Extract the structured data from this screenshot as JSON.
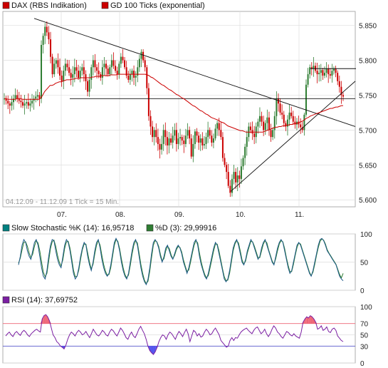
{
  "chart_data": [
    {
      "type": "candlestick",
      "legend": [
        {
          "label": "DAX (RBS Indikation)",
          "color": "#cc0000"
        },
        {
          "label": "GD 100 Ticks (exponential)",
          "color": "#cc0000"
        }
      ],
      "footer": "04.12.09 - 11.12.09   1 Tick = 15 Min.",
      "x_labels": [
        "07.",
        "08.",
        "09.",
        "10.",
        "11."
      ],
      "y_ticks": [
        "5.850",
        "5.800",
        "5.750",
        "5.700",
        "5.650",
        "5.600"
      ],
      "ylim": [
        5590,
        5870
      ],
      "grid": true,
      "candle_up_color": "#2e7d32",
      "candle_down_color": "#cc0000",
      "ma_color": "#cc0000",
      "close_series": [
        5745,
        5742,
        5738,
        5735,
        5740,
        5745,
        5750,
        5745,
        5742,
        5740,
        5735,
        5738,
        5740,
        5735,
        5738,
        5742,
        5745,
        5748,
        5750,
        5745,
        5822,
        5835,
        5848,
        5840,
        5830,
        5805,
        5780,
        5795,
        5800,
        5790,
        5778,
        5770,
        5785,
        5795,
        5790,
        5782,
        5775,
        5780,
        5790,
        5785,
        5775,
        5785,
        5790,
        5780,
        5770,
        5755,
        5772,
        5790,
        5800,
        5790,
        5785,
        5780,
        5775,
        5790,
        5795,
        5788,
        5780,
        5790,
        5800,
        5792,
        5785,
        5780,
        5795,
        5805,
        5800,
        5790,
        5778,
        5772,
        5780,
        5785,
        5775,
        5778,
        5790,
        5802,
        5812,
        5800,
        5790,
        5760,
        5720,
        5705,
        5690,
        5700,
        5690,
        5680,
        5672,
        5680,
        5700,
        5690,
        5678,
        5688,
        5682,
        5692,
        5700,
        5680,
        5688,
        5690,
        5685,
        5680,
        5692,
        5700,
        5688,
        5662,
        5680,
        5698,
        5692,
        5682,
        5688,
        5678,
        5680,
        5690,
        5700,
        5692,
        5682,
        5688,
        5702,
        5710,
        5700,
        5690,
        5660,
        5650,
        5640,
        5620,
        5610,
        5630,
        5640,
        5625,
        5635,
        5630,
        5648,
        5660,
        5676,
        5690,
        5705,
        5700,
        5695,
        5690,
        5705,
        5712,
        5720,
        5712,
        5700,
        5710,
        5718,
        5700,
        5690,
        5700,
        5720,
        5745,
        5738,
        5725,
        5722,
        5710,
        5705,
        5715,
        5725,
        5720,
        5712,
        5708,
        5712,
        5708,
        5704,
        5700,
        5722,
        5765,
        5780,
        5790,
        5788,
        5792,
        5785,
        5780,
        5782,
        5786,
        5778,
        5782,
        5788,
        5780,
        5778,
        5785,
        5788,
        5782,
        5770,
        5762,
        5750,
        5748
      ],
      "ema_series": [
        5745,
        5745,
        5744,
        5744,
        5744,
        5744,
        5744,
        5745,
        5745,
        5745,
        5744,
        5744,
        5744,
        5744,
        5744,
        5744,
        5744,
        5744,
        5744,
        5744,
        5746,
        5750,
        5755,
        5758,
        5761,
        5764,
        5764,
        5765,
        5767,
        5768,
        5769,
        5769,
        5770,
        5771,
        5772,
        5772,
        5772,
        5773,
        5773,
        5774,
        5774,
        5774,
        5775,
        5775,
        5775,
        5775,
        5775,
        5775,
        5776,
        5776,
        5777,
        5777,
        5777,
        5778,
        5778,
        5778,
        5778,
        5778,
        5779,
        5779,
        5779,
        5779,
        5780,
        5780,
        5780,
        5780,
        5780,
        5780,
        5780,
        5780,
        5780,
        5780,
        5780,
        5780,
        5780,
        5780,
        5780,
        5780,
        5779,
        5778,
        5776,
        5775,
        5773,
        5771,
        5769,
        5767,
        5765,
        5764,
        5762,
        5760,
        5758,
        5757,
        5755,
        5753,
        5751,
        5750,
        5748,
        5746,
        5745,
        5743,
        5741,
        5739,
        5737,
        5735,
        5734,
        5732,
        5730,
        5728,
        5727,
        5725,
        5723,
        5722,
        5720,
        5718,
        5717,
        5716,
        5715,
        5714,
        5712,
        5711,
        5710,
        5708,
        5706,
        5705,
        5704,
        5703,
        5702,
        5701,
        5700,
        5699,
        5699,
        5698,
        5697,
        5697,
        5697,
        5697,
        5697,
        5697,
        5697,
        5697,
        5697,
        5697,
        5698,
        5699,
        5700,
        5701,
        5702,
        5703,
        5704,
        5704,
        5705,
        5705,
        5706,
        5706,
        5707,
        5707,
        5708,
        5708,
        5709,
        5709,
        5710,
        5711,
        5712,
        5713,
        5715,
        5717,
        5718,
        5720,
        5721,
        5722,
        5723,
        5724,
        5725,
        5726,
        5727,
        5728,
        5729,
        5730,
        5731,
        5731,
        5732,
        5733,
        5733,
        5734,
        5735,
        5735
      ]
    },
    {
      "type": "line",
      "legend": [
        {
          "label": "Slow Stochastic %K (14): 16,95718",
          "color": "#008080"
        },
        {
          "label": "%D (3): 29,99916",
          "color": "#2e7d32"
        }
      ],
      "y_ticks": [
        "100",
        "50",
        "0"
      ],
      "ylim": [
        0,
        100
      ],
      "line_color": "#1f6b5a",
      "k_series": [
        45,
        60,
        80,
        90,
        85,
        70,
        60,
        55,
        70,
        85,
        90,
        80,
        60,
        40,
        25,
        20,
        35,
        60,
        80,
        90,
        88,
        70,
        55,
        45,
        40,
        60,
        80,
        90,
        85,
        70,
        50,
        30,
        20,
        25,
        40,
        60,
        75,
        85,
        80,
        60,
        45,
        35,
        50,
        70,
        85,
        90,
        75,
        55,
        40,
        30,
        25,
        30,
        45,
        65,
        85,
        92,
        85,
        70,
        50,
        35,
        25,
        20,
        30,
        50,
        70,
        85,
        90,
        80,
        60,
        40,
        25,
        15,
        10,
        20,
        40,
        65,
        85,
        90,
        85,
        75,
        60,
        50,
        60,
        75,
        80,
        70,
        60,
        55,
        65,
        75,
        80,
        75,
        65,
        50,
        40,
        30,
        40,
        55,
        70,
        85,
        90,
        80,
        60,
        45,
        35,
        25,
        20,
        30,
        45,
        60,
        75,
        85,
        80,
        65,
        50,
        35,
        20,
        15,
        20,
        35,
        55,
        75,
        85,
        90,
        80,
        65,
        50,
        45,
        55,
        70,
        80,
        90,
        85,
        75,
        65,
        55,
        60,
        75,
        85,
        90,
        80,
        70,
        60,
        50,
        45,
        60,
        75,
        85,
        90,
        85,
        70,
        55,
        40,
        30,
        35,
        50,
        65,
        80,
        85,
        80,
        70,
        60,
        50,
        40,
        30,
        25,
        35,
        50,
        65,
        80,
        90,
        92,
        88,
        80,
        70,
        65,
        60,
        55,
        50,
        45,
        35,
        25,
        20,
        17
      ],
      "d_series": [
        48,
        57,
        72,
        85,
        86,
        78,
        66,
        58,
        64,
        78,
        88,
        84,
        70,
        50,
        32,
        24,
        30,
        52,
        74,
        86,
        89,
        78,
        62,
        50,
        43,
        54,
        74,
        86,
        87,
        75,
        56,
        36,
        24,
        25,
        36,
        55,
        72,
        82,
        82,
        66,
        50,
        38,
        46,
        64,
        80,
        88,
        80,
        62,
        46,
        34,
        27,
        28,
        40,
        60,
        80,
        90,
        87,
        74,
        56,
        40,
        28,
        22,
        27,
        44,
        64,
        80,
        88,
        84,
        66,
        46,
        30,
        18,
        12,
        16,
        34,
        58,
        80,
        88,
        86,
        78,
        64,
        52,
        56,
        70,
        78,
        74,
        63,
        56,
        62,
        72,
        78,
        76,
        68,
        54,
        43,
        33,
        36,
        50,
        66,
        80,
        88,
        84,
        66,
        50,
        38,
        28,
        22,
        26,
        40,
        55,
        70,
        82,
        82,
        70,
        54,
        38,
        24,
        17,
        18,
        30,
        50,
        70,
        82,
        88,
        84,
        70,
        54,
        46,
        52,
        66,
        77,
        87,
        86,
        78,
        68,
        58,
        58,
        70,
        82,
        88,
        84,
        72,
        62,
        52,
        46,
        56,
        70,
        82,
        88,
        86,
        74,
        58,
        44,
        33,
        33,
        46,
        62,
        76,
        84,
        82,
        72,
        62,
        52,
        42,
        32,
        26,
        32,
        46,
        62,
        76,
        87,
        91,
        89,
        82,
        72,
        66,
        61,
        56,
        51,
        46,
        37,
        28,
        22,
        30
      ]
    },
    {
      "type": "line",
      "legend": [
        {
          "label": "RSI (14): 37,69752",
          "color": "#7b1fa2"
        }
      ],
      "y_ticks": [
        "100",
        "70",
        "50",
        "30",
        "0"
      ],
      "ylim": [
        0,
        100
      ],
      "upper_band": 70,
      "lower_band": 30,
      "line_color": "#7b1fa2",
      "overbought_fill": "#ee6677",
      "oversold_fill": "#5555ee",
      "rsi_series": [
        48,
        52,
        55,
        50,
        47,
        53,
        56,
        52,
        49,
        55,
        58,
        55,
        50,
        47,
        52,
        55,
        58,
        60,
        57,
        55,
        78,
        84,
        86,
        82,
        75,
        62,
        50,
        45,
        38,
        35,
        30,
        28,
        25,
        32,
        42,
        50,
        55,
        52,
        48,
        54,
        58,
        55,
        50,
        52,
        56,
        50,
        45,
        52,
        60,
        55,
        50,
        48,
        52,
        58,
        55,
        50,
        48,
        55,
        60,
        57,
        52,
        48,
        55,
        62,
        58,
        52,
        45,
        42,
        50,
        55,
        48,
        45,
        52,
        60,
        65,
        58,
        52,
        42,
        30,
        22,
        18,
        15,
        20,
        28,
        38,
        45,
        50,
        48,
        42,
        50,
        55,
        52,
        47,
        42,
        50,
        56,
        52,
        47,
        54,
        60,
        52,
        38,
        48,
        58,
        55,
        48,
        52,
        46,
        48,
        55,
        60,
        56,
        50,
        52,
        58,
        62,
        56,
        50,
        40,
        36,
        32,
        28,
        30,
        40,
        45,
        40,
        45,
        44,
        50,
        55,
        58,
        60,
        62,
        58,
        55,
        52,
        58,
        62,
        64,
        58,
        52,
        55,
        60,
        52,
        47,
        52,
        60,
        66,
        62,
        55,
        52,
        47,
        44,
        50,
        56,
        54,
        50,
        48,
        52,
        48,
        46,
        44,
        55,
        72,
        78,
        82,
        80,
        84,
        82,
        78,
        72,
        60,
        62,
        66,
        58,
        60,
        64,
        56,
        54,
        60,
        62,
        58,
        48,
        44,
        40,
        38
      ]
    }
  ]
}
